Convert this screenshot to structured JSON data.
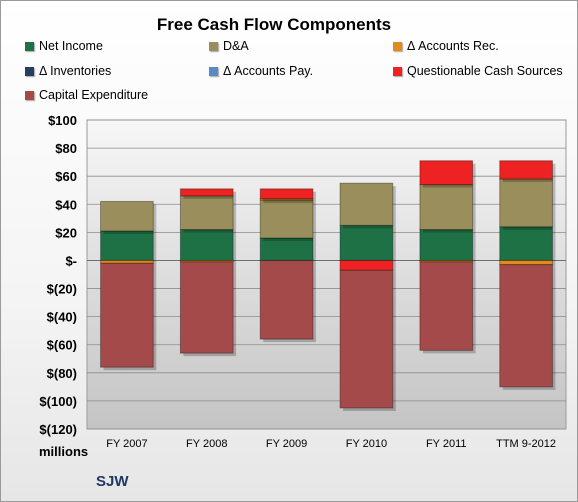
{
  "chart_data": {
    "type": "bar",
    "stacked": true,
    "title": "Free Cash Flow Components",
    "units_label": "millions",
    "company_label": "SJW",
    "categories": [
      "FY 2007",
      "FY 2008",
      "FY 2009",
      "FY 2010",
      "FY 2011",
      "TTM 9-2012"
    ],
    "ylim": [
      -120,
      100
    ],
    "yticks": [
      100,
      80,
      60,
      40,
      20,
      0,
      -20,
      -40,
      -60,
      -80,
      -100,
      -120
    ],
    "ytick_labels": [
      "$100",
      "$80",
      "$60",
      "$40",
      "$20",
      "$-",
      "$(20)",
      "$(40)",
      "$(60)",
      "$(80)",
      "$(100)",
      "$(120)"
    ],
    "grid": true,
    "legend_position": "top",
    "series": [
      {
        "name": "Net Income",
        "color": "#1e7145",
        "values": [
          21,
          22,
          16,
          25,
          22,
          24
        ]
      },
      {
        "name": "D&A",
        "color": "#9a8f5c",
        "values": [
          21,
          24,
          27,
          30,
          32,
          34
        ]
      },
      {
        "name": "Δ Accounts Rec.",
        "color": "#e38a1d",
        "values": [
          -2,
          -1,
          1,
          0,
          -1,
          -3
        ]
      },
      {
        "name": "Δ Inventories",
        "color": "#243f60",
        "values": [
          0,
          0,
          0,
          0,
          0,
          0
        ]
      },
      {
        "name": "Δ Accounts Pay.",
        "color": "#5a8ac6",
        "values": [
          0,
          0,
          0,
          0,
          0,
          0
        ]
      },
      {
        "name": "Questionable Cash Sources",
        "color": "#ee2222",
        "values": [
          0,
          5,
          7,
          -7,
          17,
          13
        ]
      },
      {
        "name": "Capital Expenditure",
        "color": "#a54a4a",
        "values": [
          -74,
          -65,
          -56,
          -98,
          -63,
          -87
        ]
      }
    ]
  }
}
